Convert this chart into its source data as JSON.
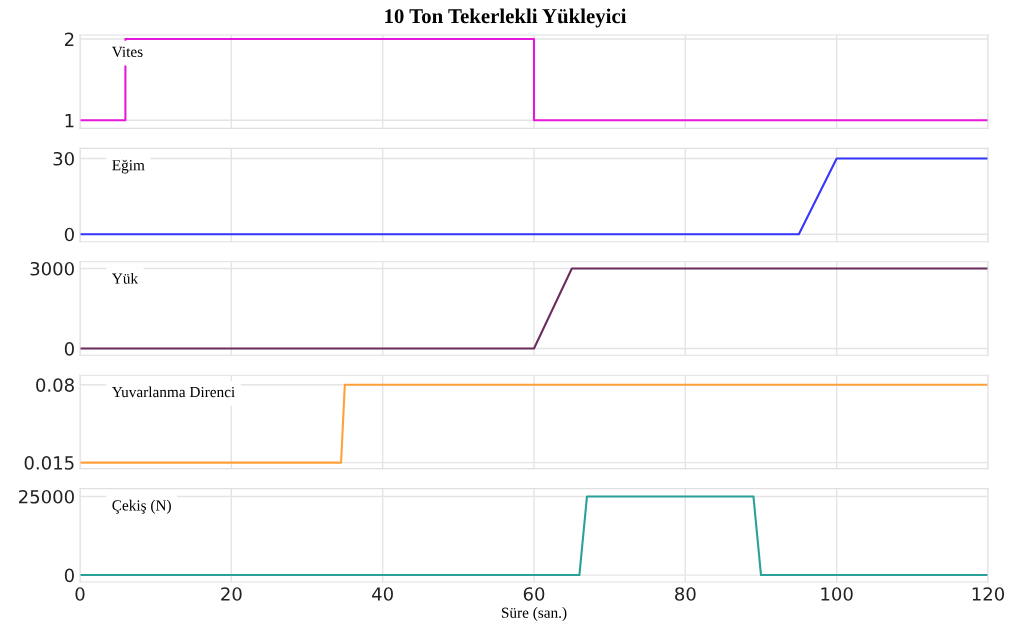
{
  "chart_data": [
    {
      "type": "line",
      "title": "10 Ton Tekerlekli Yükleyici",
      "x": [
        0,
        6,
        6,
        60,
        60,
        120
      ],
      "series": [
        {
          "name": "Vites",
          "color": "#e619d9",
          "values": [
            1,
            1,
            2,
            2,
            1,
            1
          ]
        }
      ],
      "xlim": [
        0,
        120
      ],
      "xticks": [
        0,
        20,
        40,
        60,
        80,
        100,
        120
      ],
      "ylim": [
        0.9,
        2.05
      ],
      "yticks": [
        1,
        2
      ],
      "tick_labels": "y",
      "grid": true
    },
    {
      "type": "line",
      "x": [
        0,
        95,
        100,
        120
      ],
      "series": [
        {
          "name": "Eğim",
          "color": "#3535ff",
          "values": [
            0,
            0,
            30,
            30
          ]
        }
      ],
      "xlim": [
        0,
        120
      ],
      "xticks": [
        0,
        20,
        40,
        60,
        80,
        100,
        120
      ],
      "ylim": [
        -3,
        34
      ],
      "yticks": [
        0,
        30
      ],
      "tick_labels": "y",
      "grid": true
    },
    {
      "type": "line",
      "x": [
        0,
        60,
        65,
        120
      ],
      "series": [
        {
          "name": "Yük",
          "color": "#6b2d5c",
          "values": [
            0,
            0,
            3000,
            3000
          ]
        }
      ],
      "xlim": [
        0,
        120
      ],
      "xticks": [
        0,
        20,
        40,
        60,
        80,
        100,
        120
      ],
      "ylim": [
        -250,
        3250
      ],
      "yticks": [
        0,
        3000
      ],
      "tick_labels": "y",
      "grid": true
    },
    {
      "type": "line",
      "x": [
        0,
        34.5,
        35,
        120
      ],
      "series": [
        {
          "name": "Yuvarlanma Direnci",
          "color": "#ffa03a",
          "values": [
            0.015,
            0.015,
            0.08,
            0.08
          ]
        }
      ],
      "xlim": [
        0,
        120
      ],
      "xticks": [
        0,
        20,
        40,
        60,
        80,
        100,
        120
      ],
      "ylim": [
        0.01,
        0.088
      ],
      "yticks": [
        0.015,
        0.08
      ],
      "tick_labels": "y",
      "grid": true
    },
    {
      "type": "line",
      "x": [
        0,
        66,
        67,
        89,
        90,
        120
      ],
      "series": [
        {
          "name": "Çekiş (N)",
          "color": "#2aa198",
          "values": [
            0,
            0,
            25000,
            25000,
            0,
            0
          ]
        }
      ],
      "xlim": [
        0,
        120
      ],
      "xticks": [
        0,
        20,
        40,
        60,
        80,
        100,
        120
      ],
      "ylim": [
        -2200,
        27500
      ],
      "yticks": [
        0,
        25000
      ],
      "xlabel": "Süre (san.)",
      "grid": true
    }
  ]
}
